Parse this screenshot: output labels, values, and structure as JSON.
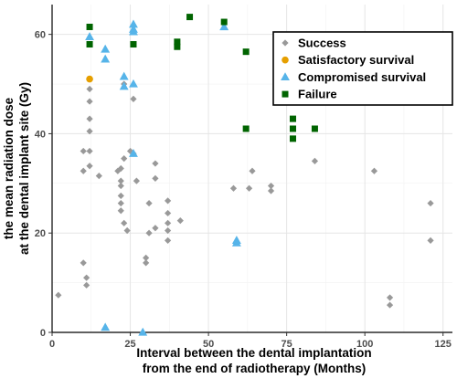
{
  "chart_data": {
    "type": "scatter",
    "xlabel_lines": [
      "Interval between the dental implantation",
      "from the end of radiotherapy (Months)"
    ],
    "ylabel_lines": [
      "the mean radiation dose",
      "at the dental implant site (Gy)"
    ],
    "xlim": [
      0,
      128
    ],
    "ylim": [
      0,
      66
    ],
    "x_ticks": [
      0,
      25,
      50,
      75,
      100,
      125
    ],
    "y_ticks": [
      0,
      20,
      40,
      60
    ],
    "x_minor_ticks": [
      12.5,
      37.5,
      62.5,
      87.5,
      112.5
    ],
    "y_minor_ticks": [
      10,
      30,
      50
    ],
    "grid": true,
    "legend_position": "top-right",
    "series": [
      {
        "name": "Success",
        "marker": "diamond",
        "color": "#999999",
        "points": [
          [
            2,
            7.5
          ],
          [
            10,
            14
          ],
          [
            10,
            32.5
          ],
          [
            10,
            36.5
          ],
          [
            11,
            11
          ],
          [
            11,
            9.5
          ],
          [
            12,
            33.5
          ],
          [
            12,
            36.5
          ],
          [
            12,
            40.5
          ],
          [
            12,
            43
          ],
          [
            12,
            46.5
          ],
          [
            12,
            49
          ],
          [
            15,
            31.5
          ],
          [
            21,
            32.5
          ],
          [
            22,
            24.5
          ],
          [
            22,
            26
          ],
          [
            22,
            27.5
          ],
          [
            22,
            29.5
          ],
          [
            22,
            30.5
          ],
          [
            22,
            33
          ],
          [
            23,
            35
          ],
          [
            23,
            50
          ],
          [
            23,
            22
          ],
          [
            24,
            20.5
          ],
          [
            25,
            36.5
          ],
          [
            26,
            36
          ],
          [
            26,
            47
          ],
          [
            27,
            30.5
          ],
          [
            30,
            14
          ],
          [
            30,
            15
          ],
          [
            31,
            26
          ],
          [
            31,
            20
          ],
          [
            33,
            21
          ],
          [
            33,
            31
          ],
          [
            33,
            34
          ],
          [
            37,
            18.5
          ],
          [
            37,
            20.5
          ],
          [
            37,
            22
          ],
          [
            37,
            24
          ],
          [
            37,
            26.5
          ],
          [
            41,
            22.5
          ],
          [
            58,
            29
          ],
          [
            63,
            29
          ],
          [
            64,
            32.5
          ],
          [
            70,
            28.5
          ],
          [
            70,
            29.5
          ],
          [
            84,
            34.5
          ],
          [
            103,
            32.5
          ],
          [
            108,
            5.5
          ],
          [
            108,
            7
          ],
          [
            121,
            18.5
          ],
          [
            121,
            26
          ]
        ]
      },
      {
        "name": "Satisfactory survival",
        "marker": "circle",
        "color": "#E69F00",
        "points": [
          [
            12,
            51
          ]
        ]
      },
      {
        "name": "Compromised survival",
        "marker": "triangle",
        "color": "#56B4E9",
        "points": [
          [
            12,
            59.5
          ],
          [
            17,
            57
          ],
          [
            17,
            55
          ],
          [
            17,
            1
          ],
          [
            23,
            51.5
          ],
          [
            23,
            49.5
          ],
          [
            26,
            62
          ],
          [
            26,
            61
          ],
          [
            26,
            60.5
          ],
          [
            26,
            50
          ],
          [
            26,
            36
          ],
          [
            29,
            0
          ],
          [
            55,
            61.5
          ],
          [
            59,
            18.5
          ],
          [
            59,
            18
          ]
        ]
      },
      {
        "name": "Failure",
        "marker": "square",
        "color": "#006400",
        "points": [
          [
            12,
            61.5
          ],
          [
            12,
            58
          ],
          [
            26,
            58
          ],
          [
            40,
            58.5
          ],
          [
            40,
            57.5
          ],
          [
            44,
            63.5
          ],
          [
            55,
            62.5
          ],
          [
            62,
            56.5
          ],
          [
            62,
            41
          ],
          [
            77,
            43
          ],
          [
            77,
            41
          ],
          [
            77,
            39
          ],
          [
            84,
            41
          ]
        ]
      }
    ]
  }
}
